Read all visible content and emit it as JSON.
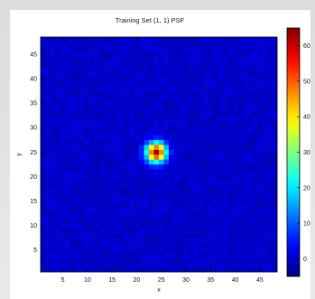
{
  "chart_data": {
    "type": "heatmap",
    "title": "Training Set (1, 1) PSF",
    "xlabel": "x",
    "ylabel": "y",
    "grid_size": [
      48,
      48
    ],
    "xlim": [
      0.5,
      48.5
    ],
    "ylim": [
      0.5,
      48.5
    ],
    "x_ticks": [
      5,
      10,
      15,
      20,
      25,
      30,
      35,
      40,
      45
    ],
    "y_ticks": [
      5,
      10,
      15,
      20,
      25,
      30,
      35,
      40,
      45
    ],
    "colorbar": {
      "min": -5,
      "max": 65,
      "ticks": [
        0,
        10,
        20,
        30,
        40,
        50,
        60
      ],
      "colormap": "jet"
    },
    "peak": {
      "x": 24,
      "y": 25,
      "value": 62
    },
    "background_level": 0,
    "psf_width_sigma": 1.4
  },
  "colors": {
    "page_background": "#e4e4e4",
    "figure_background": "#ffffff",
    "axis_color": "#000000"
  }
}
